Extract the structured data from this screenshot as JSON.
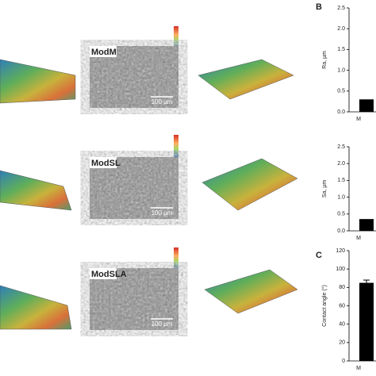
{
  "panels": {
    "b": "B",
    "c": "C"
  },
  "images": [
    {
      "label": "ModM",
      "scale": "100 µm"
    },
    {
      "label": "ModSL",
      "scale": "100 µm"
    },
    {
      "label": "ModSLA",
      "scale": "100 µm"
    }
  ],
  "chart_data": [
    {
      "type": "bar",
      "y_label": "Ra, µm",
      "categories": [
        "M"
      ],
      "values": [
        0.3
      ],
      "color": "#000000",
      "ylim": [
        0,
        2.5
      ],
      "yticks": [
        {
          "value": 0,
          "label": "0.0"
        },
        0.5,
        {
          "value": 1,
          "label": "1.0"
        },
        1.5,
        {
          "value": 2,
          "label": "2.0"
        },
        2.5
      ]
    },
    {
      "type": "bar",
      "y_label": "Sa, µm",
      "categories": [
        "M"
      ],
      "values": [
        0.35
      ],
      "color": "#000000",
      "ylim": [
        0,
        2.5
      ],
      "yticks": [
        {
          "value": 0,
          "label": "0.0"
        },
        0.5,
        {
          "value": 1,
          "label": "1.0"
        },
        1.5,
        {
          "value": 2,
          "label": "2.0"
        },
        2.5
      ]
    },
    {
      "type": "bar",
      "y_label": "Contact angle (°)",
      "categories": [
        "M"
      ],
      "values": [
        85
      ],
      "errors": [
        3
      ],
      "color": "#000000",
      "ylim": [
        0,
        120
      ],
      "yticks": [
        0,
        20,
        40,
        60,
        80,
        100,
        120
      ]
    }
  ]
}
